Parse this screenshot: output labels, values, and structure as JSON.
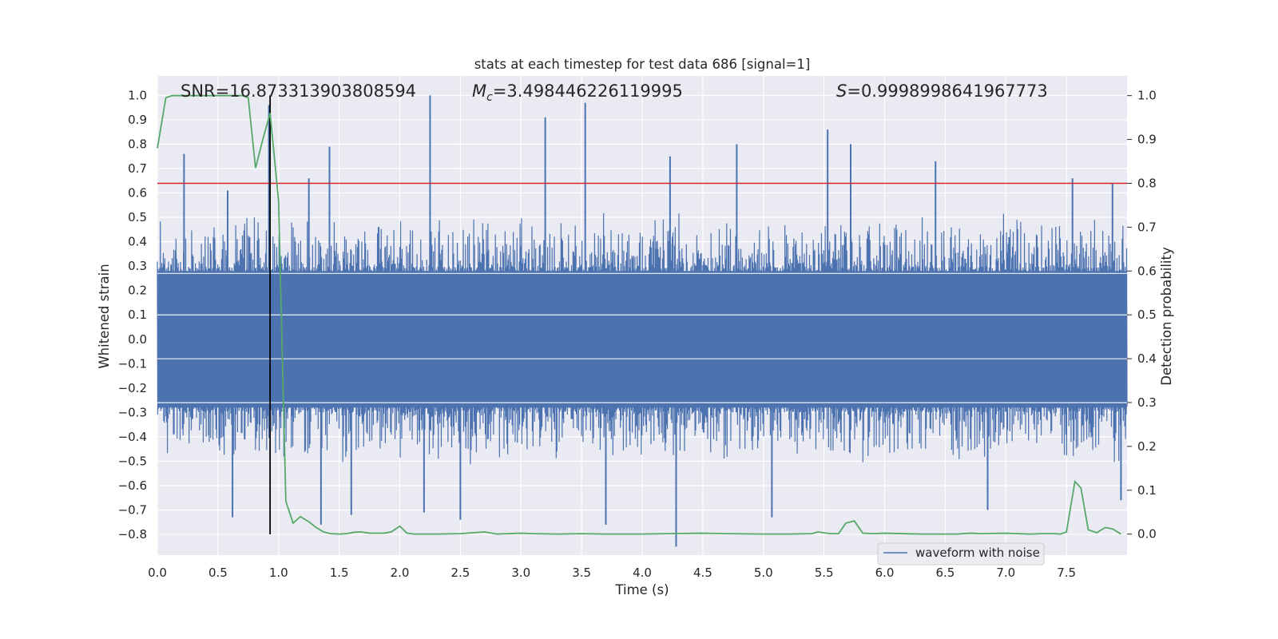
{
  "chart_data": {
    "type": "line",
    "title": "stats at each timestep for test data 686 [signal=1]",
    "xlabel": "Time (s)",
    "ylabel_left": "Whitened strain",
    "ylabel_right": "Detection probability",
    "xlim": [
      0.0,
      8.0
    ],
    "ylim_left": [
      -0.885,
      1.08
    ],
    "ylim_right": [
      -0.048,
      1.045
    ],
    "x_ticks": [
      "0.0",
      "0.5",
      "1.0",
      "1.5",
      "2.0",
      "2.5",
      "3.0",
      "3.5",
      "4.0",
      "4.5",
      "5.0",
      "5.5",
      "6.0",
      "6.5",
      "7.0",
      "7.5"
    ],
    "y_ticks_left": [
      "1.0",
      "0.9",
      "0.8",
      "0.7",
      "0.6",
      "0.5",
      "0.4",
      "0.3",
      "0.2",
      "0.1",
      "0.0",
      "−0.1",
      "−0.2",
      "−0.3",
      "−0.4",
      "−0.5",
      "−0.6",
      "−0.7",
      "−0.8"
    ],
    "y_ticks_right": [
      "1.0",
      "0.9",
      "0.8",
      "0.7",
      "0.6",
      "0.5",
      "0.4",
      "0.3",
      "0.2",
      "0.1",
      "0.0"
    ],
    "grid": true,
    "annotations": {
      "snr": "SNR=16.873313903808594",
      "mc_symbol": "M",
      "mc_sub": "c",
      "mc_value": "=3.498446226119995",
      "s_symbol": "S",
      "s_value": "=0.9998998641967773"
    },
    "threshold_line": {
      "axis": "right",
      "y": 0.8,
      "color": "#d62728"
    },
    "event_marker": {
      "x": 0.93,
      "y_range_left": [
        -0.8,
        1.0
      ],
      "color": "#000000"
    },
    "waveform": {
      "name": "waveform with noise",
      "color": "#4c72b0",
      "typical_amplitude": 0.3,
      "peak_positive": [
        {
          "x": 0.22,
          "y": 0.76
        },
        {
          "x": 0.58,
          "y": 0.61
        },
        {
          "x": 0.92,
          "y": 0.96
        },
        {
          "x": 1.25,
          "y": 0.66
        },
        {
          "x": 1.42,
          "y": 0.79
        },
        {
          "x": 2.25,
          "y": 1.0
        },
        {
          "x": 3.2,
          "y": 0.91
        },
        {
          "x": 3.53,
          "y": 0.97
        },
        {
          "x": 4.23,
          "y": 0.75
        },
        {
          "x": 4.78,
          "y": 0.8
        },
        {
          "x": 5.53,
          "y": 0.86
        },
        {
          "x": 5.72,
          "y": 0.8
        },
        {
          "x": 6.42,
          "y": 0.73
        },
        {
          "x": 7.55,
          "y": 0.66
        },
        {
          "x": 7.88,
          "y": 0.64
        }
      ],
      "peak_negative": [
        {
          "x": 0.62,
          "y": -0.73
        },
        {
          "x": 1.35,
          "y": -0.76
        },
        {
          "x": 1.6,
          "y": -0.72
        },
        {
          "x": 2.2,
          "y": -0.71
        },
        {
          "x": 2.5,
          "y": -0.74
        },
        {
          "x": 3.7,
          "y": -0.76
        },
        {
          "x": 4.28,
          "y": -0.85
        },
        {
          "x": 5.07,
          "y": -0.73
        },
        {
          "x": 6.85,
          "y": -0.7
        },
        {
          "x": 7.95,
          "y": -0.66
        }
      ]
    },
    "detection_probability": {
      "color": "#55a868",
      "x": [
        0.0,
        0.07,
        0.12,
        0.25,
        0.4,
        0.55,
        0.7,
        0.75,
        0.81,
        0.87,
        0.93,
        1.0,
        1.06,
        1.12,
        1.18,
        1.25,
        1.31,
        1.37,
        1.43,
        1.5,
        1.56,
        1.62,
        1.68,
        1.75,
        1.81,
        1.87,
        1.93,
        2.0,
        2.06,
        2.12,
        2.3,
        2.5,
        2.7,
        2.8,
        3.0,
        3.1,
        3.3,
        3.5,
        3.7,
        4.0,
        4.2,
        4.5,
        4.7,
        5.0,
        5.2,
        5.4,
        5.45,
        5.55,
        5.62,
        5.68,
        5.75,
        5.82,
        5.9,
        6.0,
        6.3,
        6.6,
        6.7,
        6.8,
        7.0,
        7.2,
        7.3,
        7.4,
        7.45,
        7.5,
        7.57,
        7.62,
        7.68,
        7.75,
        7.82,
        7.88,
        7.95
      ],
      "y": [
        0.88,
        0.995,
        1.0,
        1.0,
        1.0,
        1.0,
        1.0,
        0.995,
        0.835,
        0.9,
        0.96,
        0.76,
        0.075,
        0.025,
        0.04,
        0.028,
        0.015,
        0.005,
        0.001,
        0.0,
        0.001,
        0.004,
        0.005,
        0.002,
        0.002,
        0.002,
        0.005,
        0.018,
        0.002,
        0.0,
        0.0,
        0.001,
        0.005,
        0.0,
        0.002,
        0.001,
        0.0,
        0.001,
        0.0,
        0.0,
        0.001,
        0.002,
        0.001,
        0.0,
        0.0,
        0.001,
        0.005,
        0.001,
        0.001,
        0.025,
        0.03,
        0.002,
        0.001,
        0.002,
        0.0,
        0.0,
        0.002,
        0.001,
        0.002,
        0.0,
        0.001,
        0.001,
        0.0,
        0.005,
        0.12,
        0.105,
        0.01,
        0.003,
        0.015,
        0.012,
        0.0
      ]
    }
  }
}
